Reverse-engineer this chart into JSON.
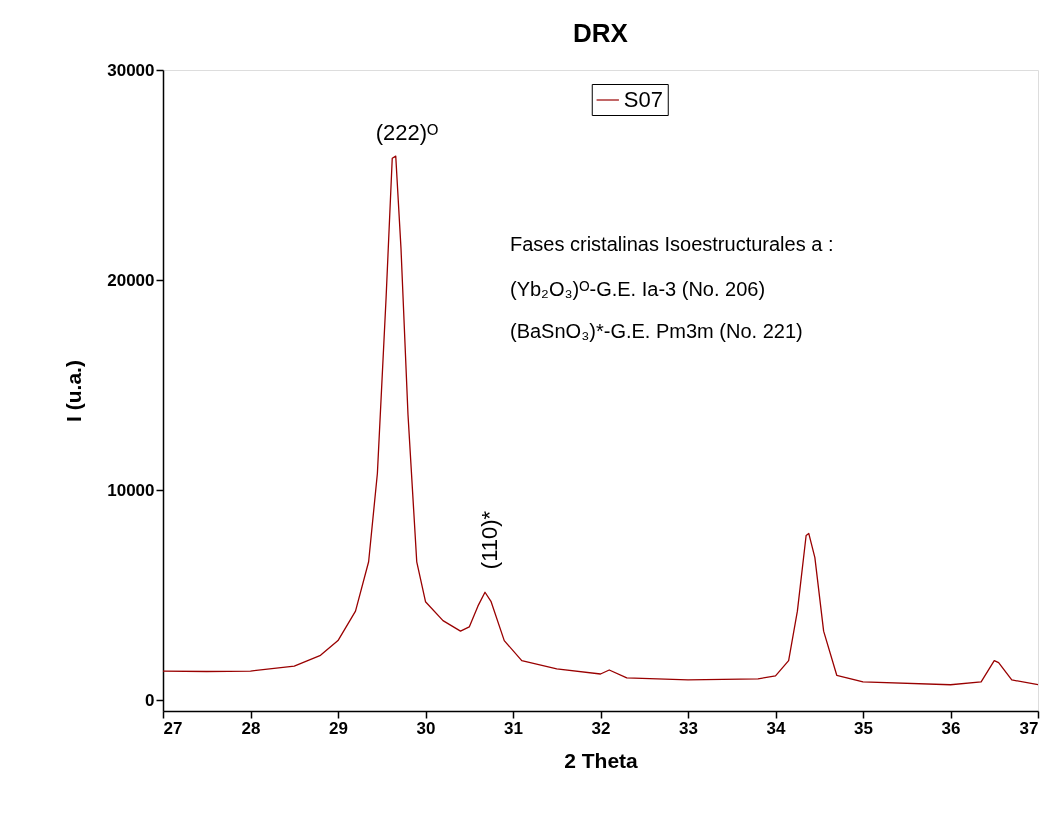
{
  "chart_data": {
    "type": "line",
    "title": "DRX",
    "xlabel": "2 Theta",
    "ylabel": "I (u.a.)",
    "xlim": [
      27,
      37
    ],
    "xticks": [
      27,
      28,
      29,
      30,
      31,
      32,
      33,
      34,
      35,
      36,
      37
    ],
    "ylim": [
      -500,
      30000
    ],
    "yticks": [
      0,
      10000,
      20000,
      30000
    ],
    "grid": false,
    "legend": "top",
    "line_style": "solid",
    "marker": "none",
    "series": [
      {
        "name": "S07",
        "color": "#990000",
        "x": [
          27,
          27.5,
          28,
          28.5,
          28.8,
          29.0,
          29.2,
          29.35,
          29.45,
          29.55,
          29.62,
          29.66,
          29.72,
          29.8,
          29.9,
          30.0,
          30.2,
          30.4,
          30.5,
          30.6,
          30.68,
          30.75,
          30.9,
          31.1,
          31.5,
          32.0,
          32.1,
          32.3,
          33.0,
          33.8,
          34.0,
          34.15,
          34.25,
          34.35,
          34.38,
          34.45,
          34.55,
          34.7,
          35.0,
          36.0,
          36.35,
          36.5,
          36.55,
          36.7,
          37
        ],
        "values": [
          1400,
          1380,
          1400,
          1640,
          2150,
          2850,
          4250,
          6600,
          10800,
          19200,
          25800,
          25900,
          21500,
          13600,
          6600,
          4700,
          3800,
          3300,
          3500,
          4500,
          5150,
          4700,
          2850,
          1900,
          1500,
          1260,
          1450,
          1080,
          980,
          1030,
          1170,
          1900,
          4250,
          7850,
          7950,
          6800,
          3300,
          1200,
          890,
          750,
          890,
          1900,
          1800,
          980,
          750
        ]
      }
    ],
    "annotations": [
      "(222)ᴼ",
      "(110)*",
      "Fases cristalinas Isoestructurales a :",
      "(Yb₂O₃)ᴼ-G.E. Ia-3 (No. 206)",
      "(BaSnO₃)*-G.E. Pm3m (No. 221)"
    ]
  }
}
